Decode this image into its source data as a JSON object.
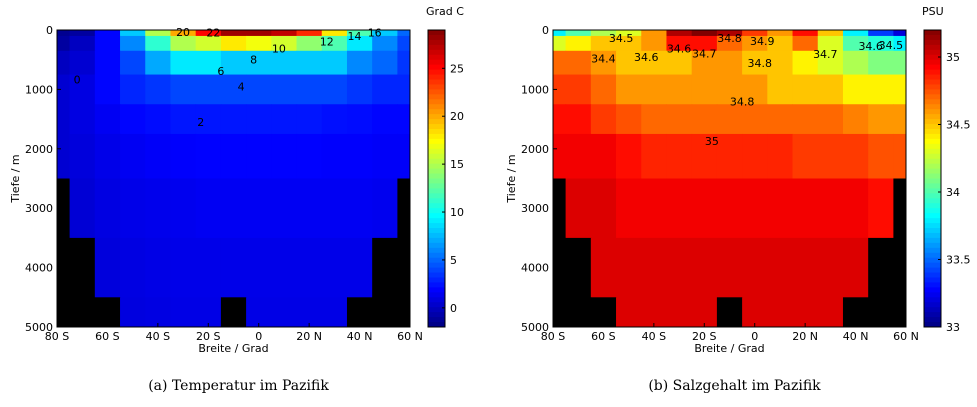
{
  "chart_data": [
    {
      "type": "heatmap",
      "caption": "(a) Temperatur im Pazifik",
      "xlabel": "Breite / Grad",
      "ylabel": "Tiefe / m",
      "colorbar_label": "Grad C",
      "x": [
        -80,
        -70,
        -60,
        -50,
        -40,
        -30,
        -20,
        -10,
        0,
        10,
        20,
        30,
        40,
        50,
        60
      ],
      "y": [
        0,
        200,
        500,
        1000,
        1500,
        2000,
        3000,
        4000,
        5000
      ],
      "values": [
        [
          -1.5,
          -1,
          2,
          8,
          15,
          20,
          25,
          28,
          28,
          27,
          24,
          18,
          12,
          8,
          5
        ],
        [
          -1,
          0,
          2,
          6,
          11,
          15,
          16,
          18,
          17,
          16,
          14,
          12,
          9,
          6,
          4
        ],
        [
          0,
          0.5,
          2,
          4,
          7,
          9,
          9,
          8,
          8,
          8,
          8,
          8,
          6,
          5,
          3.5
        ],
        [
          0.5,
          1,
          2,
          3,
          3.5,
          4,
          4,
          4,
          4,
          4,
          4,
          4,
          3.5,
          3,
          3
        ],
        [
          0.5,
          1,
          1.5,
          2,
          2.2,
          2.5,
          2.5,
          2.5,
          2.5,
          2.5,
          2.5,
          2.3,
          2.2,
          2,
          2
        ],
        [
          0.5,
          0.8,
          1.2,
          1.5,
          1.7,
          1.8,
          1.9,
          1.9,
          1.9,
          1.9,
          1.9,
          1.8,
          1.8,
          1.7,
          1.7
        ],
        [
          null,
          0.6,
          1,
          1.2,
          1.3,
          1.4,
          1.5,
          1.5,
          1.5,
          1.5,
          1.5,
          1.5,
          1.5,
          1.4,
          null
        ],
        [
          null,
          null,
          0.8,
          1,
          1.1,
          1.2,
          1.2,
          1.2,
          1.2,
          1.2,
          1.2,
          1.2,
          1.2,
          null,
          null
        ],
        [
          null,
          null,
          null,
          0.9,
          1,
          1.1,
          1.1,
          null,
          1.1,
          1.1,
          1.1,
          1.1,
          null,
          null,
          null
        ]
      ],
      "xlim": [
        -80,
        60
      ],
      "xticks": [
        {
          "value": -80,
          "label": "80 S"
        },
        {
          "value": -60,
          "label": "60 S"
        },
        {
          "value": -40,
          "label": "40 S"
        },
        {
          "value": -20,
          "label": "20 S"
        },
        0,
        {
          "value": 20,
          "label": "20 N"
        },
        {
          "value": 40,
          "label": "40 N"
        },
        {
          "value": 60,
          "label": "60 N"
        }
      ],
      "ylim": [
        5000,
        0
      ],
      "yticks": [
        0,
        1000,
        2000,
        3000,
        4000,
        5000
      ],
      "clim": [
        -2,
        29
      ],
      "cticks": [
        0,
        5,
        10,
        15,
        20,
        25
      ],
      "contour_labels": [
        {
          "value": 2,
          "x": -23,
          "y": 1620
        },
        {
          "value": 4,
          "x": -7,
          "y": 1020
        },
        {
          "value": 6,
          "x": -15,
          "y": 760
        },
        {
          "value": 8,
          "x": -2,
          "y": 560
        },
        {
          "value": 10,
          "x": 8,
          "y": 380
        },
        {
          "value": 12,
          "x": 27,
          "y": 260
        },
        {
          "value": 14,
          "x": 38,
          "y": 170
        },
        {
          "value": 16,
          "x": 46,
          "y": 110
        },
        {
          "value": 20,
          "x": -30,
          "y": 100
        },
        {
          "value": 22,
          "x": -18,
          "y": 110
        },
        {
          "value": 0,
          "x": -72,
          "y": 900
        }
      ]
    },
    {
      "type": "heatmap",
      "caption": "(b) Salzgehalt im Pazifik",
      "xlabel": "Breite / Grad",
      "ylabel": "Tiefe / m",
      "colorbar_label": "PSU",
      "x": [
        -80,
        -70,
        -60,
        -50,
        -40,
        -30,
        -20,
        -10,
        0,
        10,
        20,
        30,
        40,
        50,
        60
      ],
      "y": [
        0,
        200,
        500,
        1000,
        1500,
        2000,
        3000,
        4000,
        5000
      ],
      "values": [
        [
          33.8,
          34,
          34.2,
          34.3,
          34.6,
          35.1,
          35.2,
          35.1,
          34.8,
          34.6,
          34.9,
          34.5,
          33.8,
          33.4,
          33.2
        ],
        [
          34.3,
          34.4,
          34.5,
          34.5,
          34.6,
          34.9,
          34.9,
          34.7,
          34.6,
          34.5,
          34.7,
          34.3,
          34,
          33.9,
          33.8
        ],
        [
          34.7,
          34.7,
          34.6,
          34.5,
          34.5,
          34.5,
          34.6,
          34.6,
          34.5,
          34.5,
          34.4,
          34.3,
          34.2,
          34.1,
          34.1
        ],
        [
          34.8,
          34.8,
          34.7,
          34.6,
          34.6,
          34.6,
          34.6,
          34.6,
          34.6,
          34.5,
          34.5,
          34.5,
          34.4,
          34.4,
          34.4
        ],
        [
          34.9,
          34.9,
          34.8,
          34.75,
          34.7,
          34.7,
          34.7,
          34.7,
          34.7,
          34.7,
          34.7,
          34.7,
          34.65,
          34.6,
          34.6
        ],
        [
          34.95,
          34.95,
          34.95,
          34.9,
          34.85,
          34.85,
          34.85,
          34.85,
          34.85,
          34.85,
          34.8,
          34.8,
          34.8,
          34.75,
          34.75
        ],
        [
          null,
          35,
          35,
          34.95,
          34.95,
          34.95,
          34.95,
          34.95,
          34.95,
          34.95,
          34.95,
          34.95,
          34.95,
          34.9,
          null
        ],
        [
          null,
          null,
          35,
          35,
          35,
          35,
          35,
          35,
          35,
          35,
          35,
          35,
          35,
          null,
          null
        ],
        [
          null,
          null,
          null,
          35,
          35,
          35,
          35,
          null,
          35,
          35,
          35,
          35,
          null,
          null,
          null
        ]
      ],
      "xlim": [
        -80,
        60
      ],
      "xticks": [
        {
          "value": -80,
          "label": "80 S"
        },
        {
          "value": -60,
          "label": "60 S"
        },
        {
          "value": -40,
          "label": "40 S"
        },
        {
          "value": -20,
          "label": "20 S"
        },
        0,
        {
          "value": 20,
          "label": "20 N"
        },
        {
          "value": 40,
          "label": "40 N"
        },
        {
          "value": 60,
          "label": "60 N"
        }
      ],
      "ylim": [
        5000,
        0
      ],
      "yticks": [
        0,
        1000,
        2000,
        3000,
        4000,
        5000
      ],
      "clim": [
        33,
        35.2
      ],
      "cticks": [
        33,
        33.5,
        34,
        34.5,
        35
      ],
      "contour_labels": [
        {
          "value": 34.4,
          "x": -60,
          "y": 550
        },
        {
          "value": 34.5,
          "x": -53,
          "y": 200
        },
        {
          "value": 34.6,
          "x": -43,
          "y": 520
        },
        {
          "value": 34.6,
          "x": -30,
          "y": 380
        },
        {
          "value": 34.7,
          "x": -20,
          "y": 460
        },
        {
          "value": 34.8,
          "x": -10,
          "y": 200
        },
        {
          "value": 34.9,
          "x": 3,
          "y": 250
        },
        {
          "value": 34.8,
          "x": 2,
          "y": 620
        },
        {
          "value": 34.7,
          "x": 28,
          "y": 470
        },
        {
          "value": 34.6,
          "x": 46,
          "y": 340
        },
        {
          "value": 34.5,
          "x": 54,
          "y": 320
        },
        {
          "value": 34.8,
          "x": -5,
          "y": 1270
        },
        {
          "value": 35,
          "x": -17,
          "y": 1940
        }
      ]
    }
  ]
}
